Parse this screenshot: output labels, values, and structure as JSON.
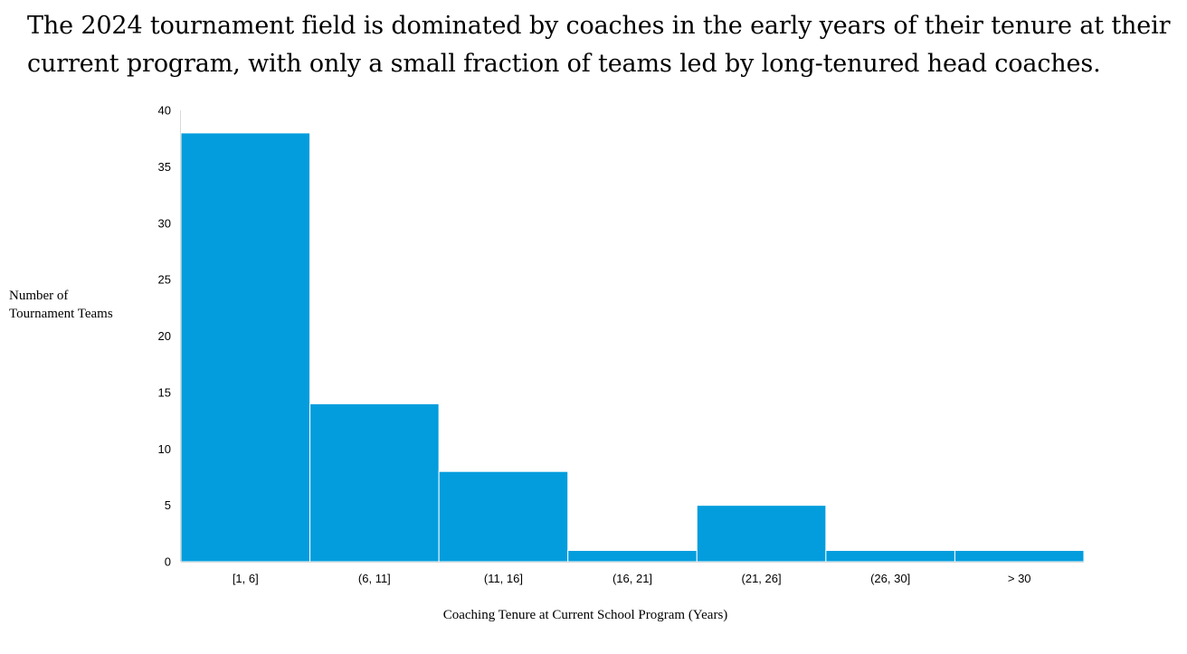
{
  "title_lines": [
    "The 2024 tournament field is dominated by coaches in the early years of their tenure at their",
    "current program, with only a small fraction of teams led by long-tenured head coaches."
  ],
  "chart_data": {
    "type": "bar",
    "title": "The 2024 tournament field is dominated by coaches in the early years of their tenure at their current program, with only a small fraction of teams led by long-tenured head coaches.",
    "categories": [
      "[1, 6]",
      "(6, 11]",
      "(11, 16]",
      "(16, 21]",
      "(21, 26]",
      "(26, 30]",
      "> 30"
    ],
    "values": [
      38,
      14,
      8,
      1,
      5,
      1,
      1
    ],
    "xlabel": "Coaching Tenure at Current School Program (Years)",
    "ylabel_lines": [
      "Number of",
      "Tournament Teams"
    ],
    "ylim": [
      0,
      40
    ],
    "yticks": [
      0,
      5,
      10,
      15,
      20,
      25,
      30,
      35,
      40
    ],
    "grid": false,
    "bar_color": "#039ddd",
    "axis_color": "#d9d9d9"
  }
}
